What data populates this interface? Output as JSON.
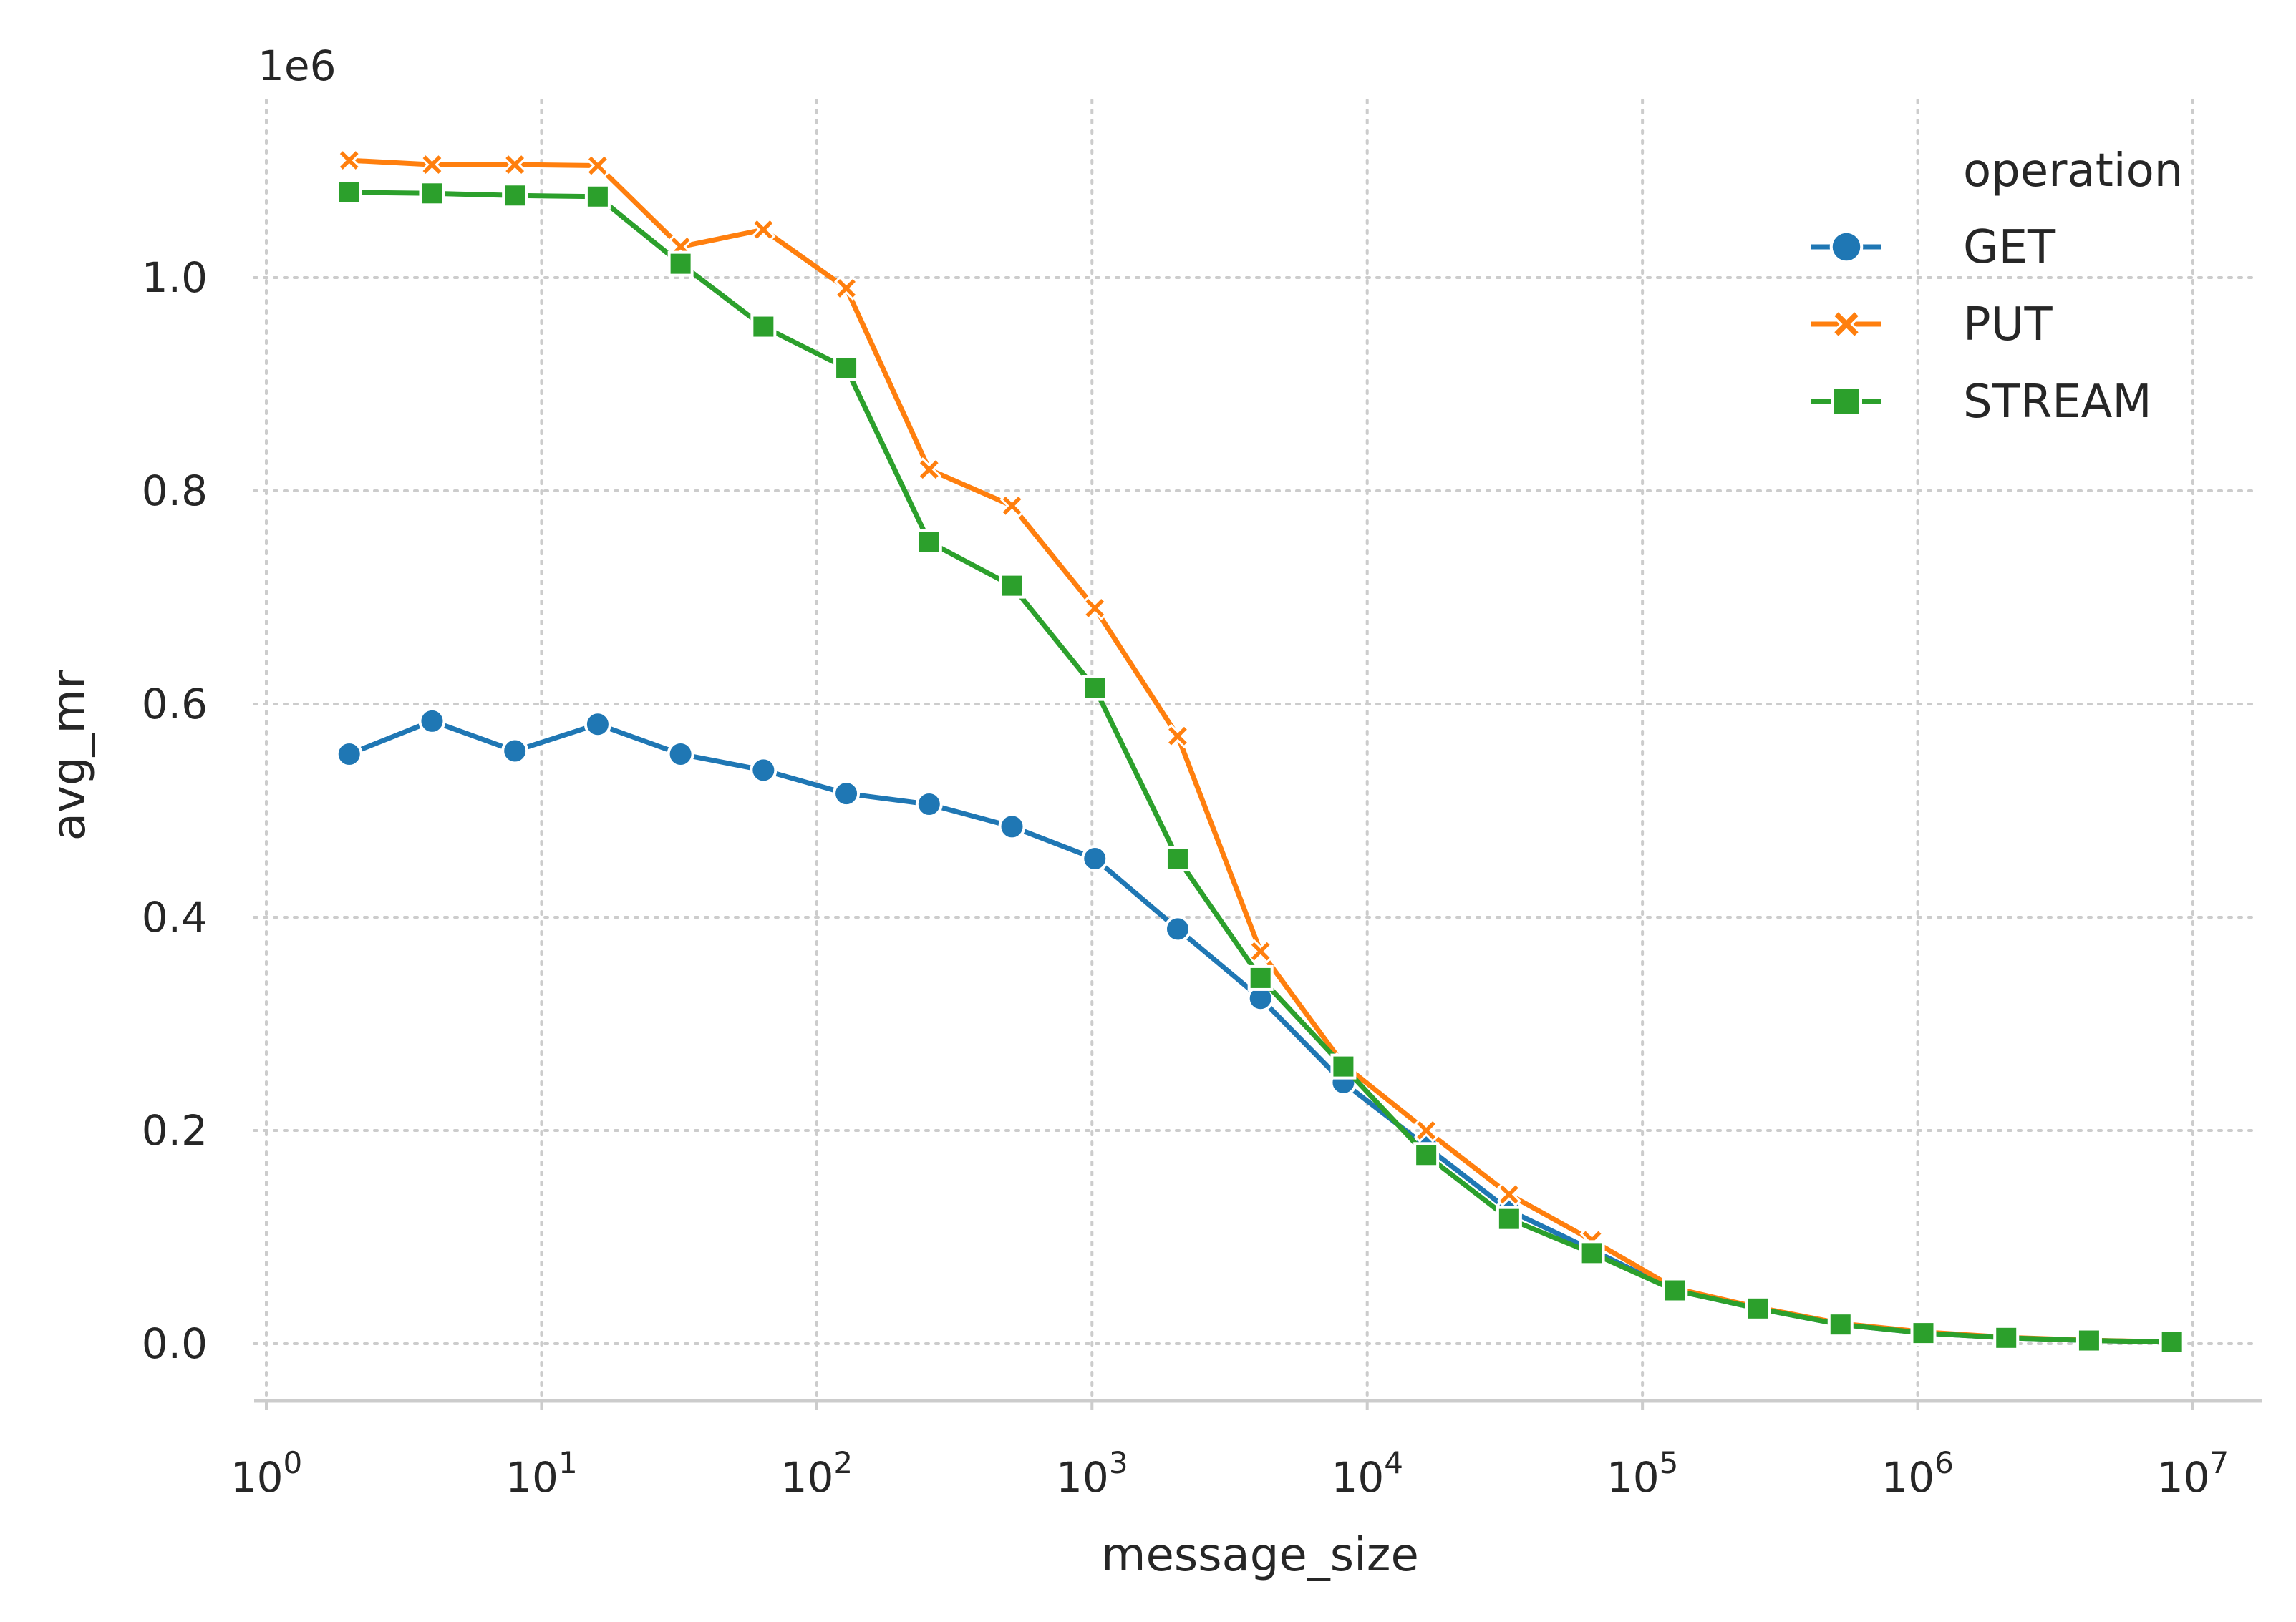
{
  "chart_data": {
    "type": "line",
    "title": "",
    "xlabel": "message_size",
    "ylabel": "avg_mr",
    "xscale": "log",
    "xlim": [
      1,
      10000000
    ],
    "ylim": [
      -55000,
      1170000
    ],
    "y_offset_text": "1e6",
    "x_ticks": [
      {
        "base": "10",
        "exp": "0"
      },
      {
        "base": "10",
        "exp": "1"
      },
      {
        "base": "10",
        "exp": "2"
      },
      {
        "base": "10",
        "exp": "3"
      },
      {
        "base": "10",
        "exp": "4"
      },
      {
        "base": "10",
        "exp": "5"
      },
      {
        "base": "10",
        "exp": "6"
      },
      {
        "base": "10",
        "exp": "7"
      }
    ],
    "y_ticks": [
      "0.0",
      "0.2",
      "0.4",
      "0.6",
      "0.8",
      "1.0"
    ],
    "grid": true,
    "legend": {
      "title": "operation",
      "position": "top-right"
    },
    "x": [
      2,
      4,
      8,
      16,
      32,
      64,
      128,
      256,
      512,
      1024,
      2048,
      4096,
      8192,
      16384,
      32768,
      65536,
      131072,
      262144,
      524288,
      1048576,
      2097152,
      4194304,
      8388608
    ],
    "series": [
      {
        "name": "GET",
        "color": "#1f77b4",
        "marker": "circle",
        "values": [
          553000,
          584000,
          556000,
          581000,
          553000,
          538000,
          516000,
          506000,
          485000,
          455000,
          389000,
          324000,
          245000,
          185000,
          125000,
          88000,
          50000,
          33000,
          18000,
          10000,
          5500,
          3000,
          1500
        ]
      },
      {
        "name": "PUT",
        "color": "#ff7f0e",
        "marker": "x",
        "values": [
          1110000,
          1106000,
          1106000,
          1105000,
          1029000,
          1045000,
          990000,
          820000,
          786000,
          690000,
          570000,
          368000,
          262000,
          200000,
          140000,
          97000,
          52000,
          34000,
          19000,
          11000,
          6000,
          3200,
          1600
        ]
      },
      {
        "name": "STREAM",
        "color": "#2ca02c",
        "marker": "square",
        "values": [
          1080000,
          1079000,
          1077000,
          1076000,
          1013000,
          954000,
          915000,
          752000,
          711000,
          615000,
          455000,
          343000,
          260000,
          177000,
          117000,
          85000,
          50000,
          33000,
          18000,
          10000,
          5500,
          3000,
          1500
        ]
      }
    ]
  }
}
